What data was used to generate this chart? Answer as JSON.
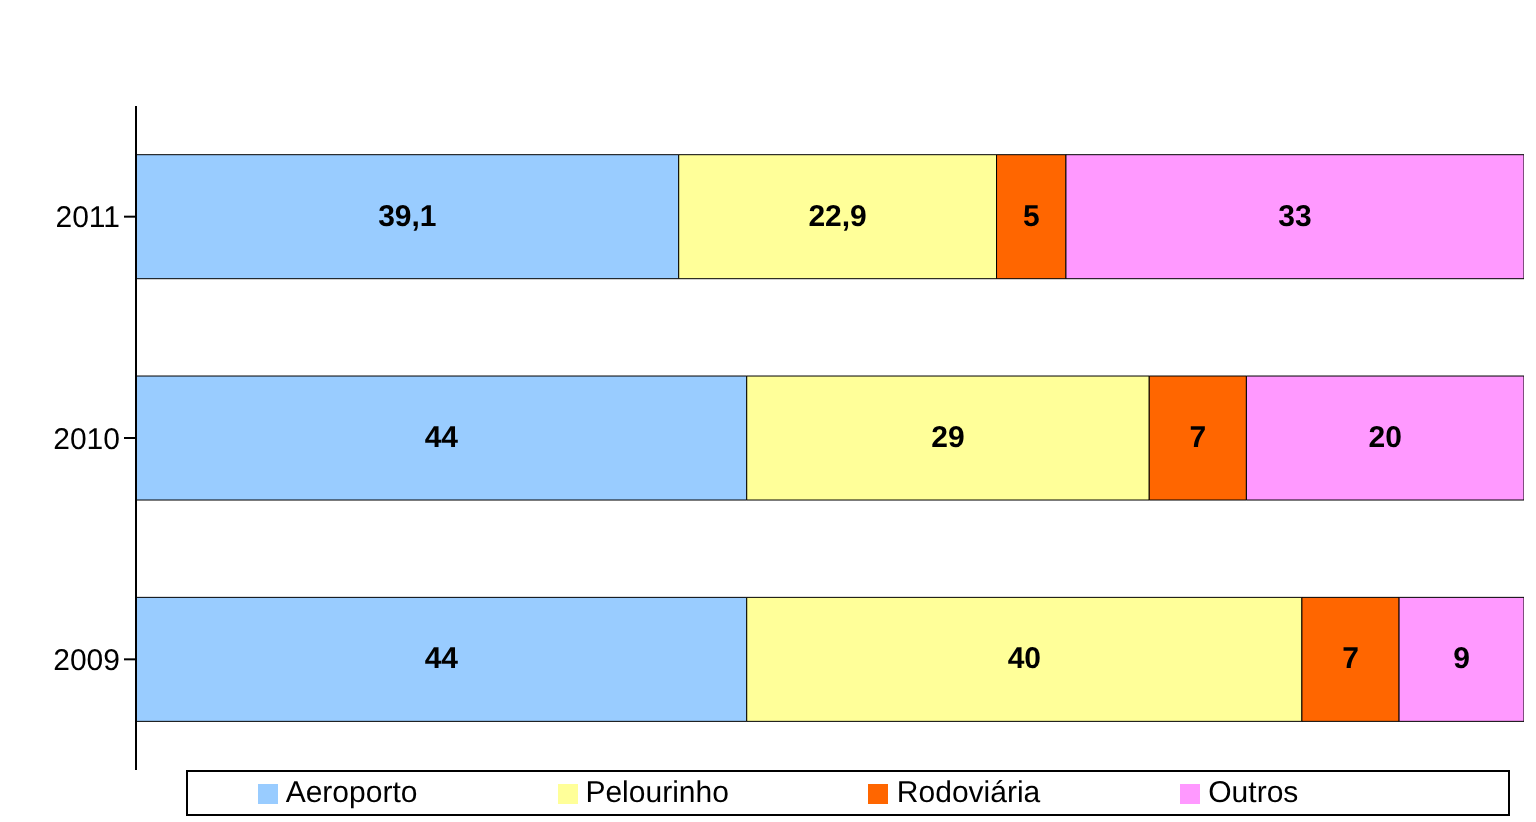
{
  "chart_data": {
    "type": "bar",
    "orientation": "horizontal",
    "stacked": true,
    "categories": [
      "2011",
      "2010",
      "2009"
    ],
    "xlim": [
      0,
      100
    ],
    "tick_labels": "y",
    "legend": "bottom",
    "series": [
      {
        "name": "Aeroporto",
        "color": "#99ccff",
        "values": [
          39.1,
          44,
          44
        ],
        "value_labels": [
          "39,1",
          "44",
          "44"
        ]
      },
      {
        "name": "Pelourinho",
        "color": "#ffff99",
        "values": [
          22.9,
          29,
          40
        ],
        "value_labels": [
          "22,9",
          "29",
          "40"
        ]
      },
      {
        "name": "Rodoviária",
        "color": "#ff6600",
        "values": [
          5,
          7,
          7
        ],
        "value_labels": [
          "5",
          "7",
          "7"
        ]
      },
      {
        "name": "Outros",
        "color": "#ff99ff",
        "values": [
          33,
          20,
          9
        ],
        "value_labels": [
          "33",
          "20",
          "9"
        ]
      }
    ]
  }
}
